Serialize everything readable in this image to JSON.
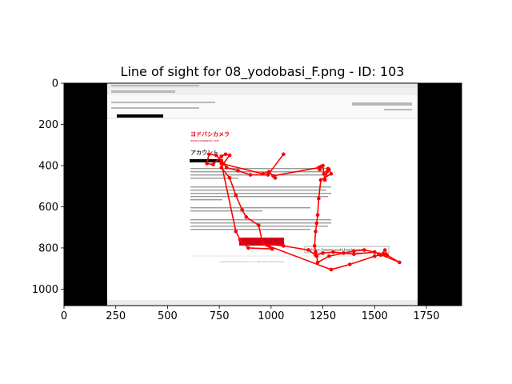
{
  "chart_data": {
    "type": "scatter",
    "title": "Line of sight for 08_yodobasi_F.png - ID: 103",
    "xlim": [
      0,
      1920
    ],
    "ylim": [
      1080,
      0
    ],
    "x_ticks": [
      0,
      250,
      500,
      750,
      1000,
      1250,
      1500,
      1750
    ],
    "y_ticks": [
      0,
      200,
      400,
      600,
      800,
      1000
    ],
    "grid": false,
    "series": [
      {
        "color": "#ff0000",
        "points": [
          [
            1060,
            345
          ],
          [
            985,
            445
          ],
          [
            900,
            445
          ],
          [
            840,
            425
          ],
          [
            785,
            410
          ],
          [
            760,
            375
          ],
          [
            735,
            350
          ],
          [
            700,
            345
          ],
          [
            690,
            390
          ],
          [
            720,
            395
          ],
          [
            760,
            355
          ],
          [
            780,
            345
          ],
          [
            800,
            350
          ],
          [
            770,
            390
          ],
          [
            760,
            410
          ],
          [
            800,
            460
          ],
          [
            830,
            545
          ],
          [
            860,
            615
          ],
          [
            880,
            650
          ],
          [
            940,
            690
          ],
          [
            960,
            780
          ],
          [
            1005,
            805
          ],
          [
            890,
            800
          ],
          [
            850,
            760
          ],
          [
            830,
            720
          ],
          [
            760,
            390
          ],
          [
            960,
            440
          ],
          [
            990,
            430
          ],
          [
            1020,
            460
          ],
          [
            1010,
            450
          ],
          [
            1230,
            410
          ],
          [
            1235,
            420
          ],
          [
            1240,
            405
          ],
          [
            1250,
            400
          ],
          [
            1255,
            440
          ],
          [
            1260,
            470
          ],
          [
            1270,
            430
          ],
          [
            1275,
            415
          ],
          [
            1280,
            420
          ],
          [
            1290,
            440
          ],
          [
            1240,
            470
          ],
          [
            1230,
            560
          ],
          [
            1225,
            640
          ],
          [
            1220,
            680
          ],
          [
            1215,
            720
          ],
          [
            1210,
            790
          ],
          [
            1215,
            820
          ],
          [
            1220,
            840
          ],
          [
            1225,
            870
          ],
          [
            1280,
            840
          ],
          [
            1350,
            825
          ],
          [
            1400,
            815
          ],
          [
            1450,
            810
          ],
          [
            1500,
            820
          ],
          [
            1520,
            830
          ],
          [
            1530,
            835
          ],
          [
            1550,
            810
          ],
          [
            1560,
            835
          ],
          [
            1620,
            870
          ],
          [
            1500,
            820
          ],
          [
            1400,
            830
          ],
          [
            1300,
            820
          ],
          [
            1250,
            825
          ],
          [
            1215,
            835
          ],
          [
            1180,
            810
          ],
          [
            1060,
            790
          ],
          [
            960,
            780
          ],
          [
            1290,
            905
          ],
          [
            1380,
            880
          ],
          [
            1500,
            840
          ],
          [
            1545,
            830
          ]
        ]
      }
    ],
    "background_image": {
      "description_text": [
        "ヨドバシカメラ",
        "www.yodobashi.com",
        "アカウント",
        "https://www.yodobashi.com",
        "Copyright (C) Yodobashi Camera Co.,Ltd. 1996-2020. All Rights Reserved."
      ]
    }
  },
  "colors": {
    "line": "#ff0000",
    "letterbox": "#000000",
    "email_bg": "#ffffff",
    "brand": "#e60012"
  }
}
